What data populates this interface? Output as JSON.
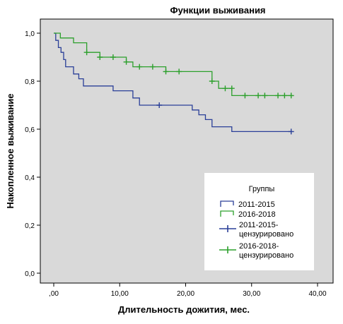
{
  "chart_data": {
    "type": "line",
    "subtype": "kaplan-meier step",
    "title": "Функции выживания",
    "xlabel": "Длительность дожития, мес.",
    "ylabel": "Накопленное выживание",
    "xlim": [
      0,
      40
    ],
    "ylim": [
      0,
      1.0
    ],
    "x_ticks": [
      0,
      10,
      20,
      30,
      40
    ],
    "x_tick_labels": [
      ",00",
      "10,00",
      "20,00",
      "30,00",
      "40,00"
    ],
    "y_ticks": [
      0,
      0.2,
      0.4,
      0.6,
      0.8,
      1.0
    ],
    "y_tick_labels": [
      "0,0",
      "0,2",
      "0,4",
      "0,6",
      "0,8",
      "1,0"
    ],
    "grid": false,
    "plot_background": "#d9d9d9",
    "legend": {
      "title": "Группы",
      "position": "bottom-right",
      "entries": [
        {
          "label": "2011-2015",
          "kind": "step",
          "series": 0
        },
        {
          "label": "2016-2018",
          "kind": "step",
          "series": 1
        },
        {
          "label": [
            "2011-2015-",
            "цензурировано"
          ],
          "kind": "censor",
          "series": 0
        },
        {
          "label": [
            "2016-2018-",
            "цензурировано"
          ],
          "kind": "censor",
          "series": 1
        }
      ]
    },
    "series": [
      {
        "name": "2011-2015",
        "color": "#2a3f98",
        "steps": [
          [
            0,
            1.0
          ],
          [
            0.3,
            0.97
          ],
          [
            0.7,
            0.94
          ],
          [
            1.1,
            0.92
          ],
          [
            1.5,
            0.89
          ],
          [
            1.8,
            0.86
          ],
          [
            3.0,
            0.83
          ],
          [
            3.8,
            0.81
          ],
          [
            4.5,
            0.78
          ],
          [
            9.0,
            0.76
          ],
          [
            12.0,
            0.73
          ],
          [
            13.0,
            0.7
          ],
          [
            21.0,
            0.68
          ],
          [
            22.0,
            0.66
          ],
          [
            23.0,
            0.64
          ],
          [
            24.0,
            0.61
          ],
          [
            27.0,
            0.59
          ],
          [
            36.0,
            0.59
          ]
        ],
        "censored": [
          [
            16.0,
            0.7
          ],
          [
            36.0,
            0.59
          ]
        ]
      },
      {
        "name": "2016-2018",
        "color": "#2ca02c",
        "steps": [
          [
            0,
            1.0
          ],
          [
            1.0,
            0.98
          ],
          [
            3.0,
            0.96
          ],
          [
            5.0,
            0.92
          ],
          [
            7.0,
            0.9
          ],
          [
            11.0,
            0.88
          ],
          [
            12.0,
            0.86
          ],
          [
            17.0,
            0.84
          ],
          [
            24.0,
            0.8
          ],
          [
            25.0,
            0.77
          ],
          [
            27.0,
            0.74
          ],
          [
            36.0,
            0.74
          ]
        ],
        "censored": [
          [
            5.0,
            0.92
          ],
          [
            7.0,
            0.9
          ],
          [
            9.0,
            0.9
          ],
          [
            11.0,
            0.88
          ],
          [
            13.0,
            0.86
          ],
          [
            15.0,
            0.86
          ],
          [
            17.0,
            0.84
          ],
          [
            19.0,
            0.84
          ],
          [
            24.0,
            0.8
          ],
          [
            26.0,
            0.77
          ],
          [
            27.0,
            0.77
          ],
          [
            29.0,
            0.74
          ],
          [
            31.0,
            0.74
          ],
          [
            32.0,
            0.74
          ],
          [
            34.0,
            0.74
          ],
          [
            35.0,
            0.74
          ],
          [
            36.0,
            0.74
          ]
        ]
      }
    ]
  }
}
